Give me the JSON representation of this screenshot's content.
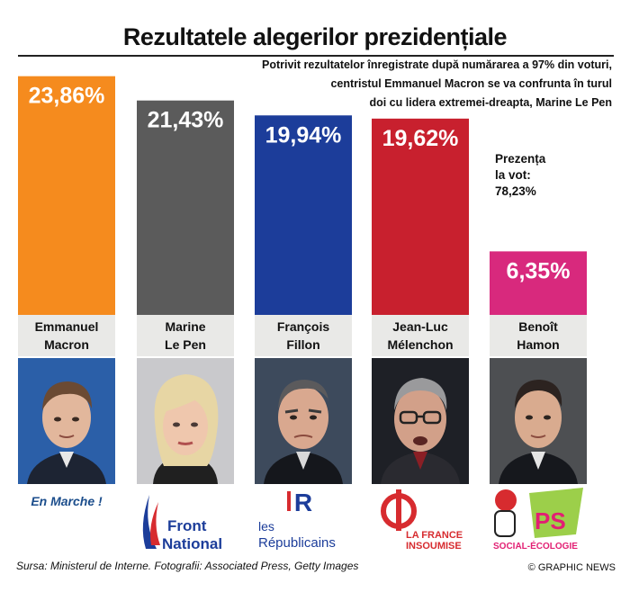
{
  "title": "Rezultatele alegerilor prezidențiale",
  "subtitle_lines": [
    "Potrivit rezultatelor înregistrate după numărarea a 97% din voturi,",
    "centristul Emmanuel Macron se va confrunta în turul",
    "doi cu lidera extremei-dreapta, Marine Le Pen"
  ],
  "turnout": {
    "label_line1": "Prezența",
    "label_line2": "la vot:",
    "value": "78,23%"
  },
  "source": "Sursa: Ministerul de Interne.  Fotografii: Associated Press, Getty Images",
  "credit": "© GRAPHIC NEWS",
  "chart_data": {
    "type": "bar",
    "categories": [
      "Emmanuel Macron",
      "Marine Le Pen",
      "François Fillon",
      "Jean-Luc Mélenchon",
      "Benoît Hamon"
    ],
    "values": [
      23.86,
      21.43,
      19.94,
      19.62,
      6.35
    ],
    "value_labels": [
      "23,86%",
      "21,43%",
      "19,94%",
      "19,62%",
      "6,35%"
    ],
    "name_lines": [
      [
        "Emmanuel",
        "Macron"
      ],
      [
        "Marine",
        "Le Pen"
      ],
      [
        "François",
        "Fillon"
      ],
      [
        "Jean-Luc",
        "Mélenchon"
      ],
      [
        "Benoît",
        "Hamon"
      ]
    ],
    "colors": [
      "#f58b1e",
      "#5b5b5b",
      "#1c3d9a",
      "#c8202e",
      "#d8297d"
    ],
    "ylim": [
      0,
      25
    ]
  },
  "parties": [
    {
      "name": "En Marche !"
    },
    {
      "line1": "Front",
      "line2": "National"
    },
    {
      "line1": "les",
      "line2": "Républicains",
      "mark": "R"
    },
    {
      "line1": "LA FRANCE",
      "line2": "INSOUMISE"
    },
    {
      "line1": "PS",
      "line2": "SOCIAL-ÉCOLOGIE"
    }
  ],
  "icons": [
    "macron-photo",
    "le-pen-photo",
    "fillon-photo",
    "melenchon-photo",
    "hamon-photo"
  ]
}
